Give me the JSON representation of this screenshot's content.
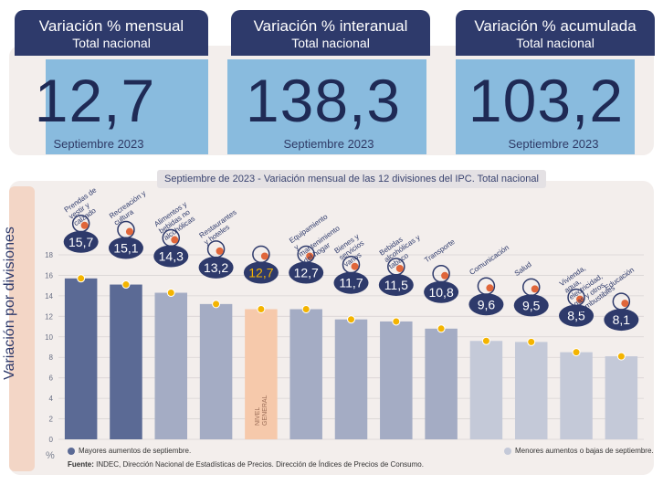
{
  "kpis": [
    {
      "title": "Variación % mensual",
      "subtitle": "Total nacional",
      "value": "12,7",
      "date": "Septiembre 2023"
    },
    {
      "title": "Variación % interanual",
      "subtitle": "Total nacional",
      "value": "138,3",
      "date": "Septiembre 2023"
    },
    {
      "title": "Variación % acumulada",
      "subtitle": "Total nacional",
      "value": "103,2",
      "date": "Septiembre 2023"
    }
  ],
  "y_axis_label": "Variación por divisiones",
  "percent_sign": "%",
  "legend": {
    "high": "Mayores aumentos de septiembre.",
    "low": "Menores aumentos o bajas de septiembre."
  },
  "source": {
    "label": "Fuente:",
    "text": "INDEC, Dirección Nacional de Estadísticas de Precios. Dirección de Índices de Precios de Consumo."
  },
  "colors": {
    "dark_navy": "#2e3a6b",
    "high_bar": "#5b6a95",
    "mid_bar": "#a4acc4",
    "low_bar": "#c4c9d8",
    "general_bar": "#f6c9ab",
    "dot": "#f4b400",
    "highlight": "#76b2dc"
  },
  "chart_data": {
    "type": "bar",
    "title": "Septiembre de 2023 - Variación mensual de las 12 divisiones del IPC. Total nacional",
    "ylabel": "Variación por divisiones",
    "ylim": [
      0,
      18
    ],
    "yticks": [
      0,
      2,
      4,
      6,
      8,
      10,
      12,
      14,
      16,
      18
    ],
    "grid": true,
    "categories": [
      "Prendas de vestir y calzado",
      "Recreación y cultura",
      "Alimentos y bebidas no alcohólicas",
      "Restaurantes y hoteles",
      "NIVEL GENERAL",
      "Equipamiento y mantenimiento del hogar",
      "Bienes y servicios varios",
      "Bebidas alcohólicas y tabaco",
      "Transporte",
      "Comunicación",
      "Salud",
      "Vivienda, agua, electricidad, gas y otros combustibles",
      "Educación"
    ],
    "values": [
      15.7,
      15.1,
      14.3,
      13.2,
      12.7,
      12.7,
      11.7,
      11.5,
      10.8,
      9.6,
      9.5,
      8.5,
      8.1
    ],
    "value_labels": [
      "15,7",
      "15,1",
      "14,3",
      "13,2",
      "12,7",
      "12,7",
      "11,7",
      "11,5",
      "10,8",
      "9,6",
      "9,5",
      "8,5",
      "8,1"
    ],
    "groups": [
      "high",
      "high",
      "mid",
      "mid",
      "general",
      "mid",
      "mid",
      "mid",
      "mid",
      "low",
      "low",
      "low",
      "low"
    ],
    "general_bar_text": [
      "NIVEL",
      "GENERAL"
    ]
  }
}
